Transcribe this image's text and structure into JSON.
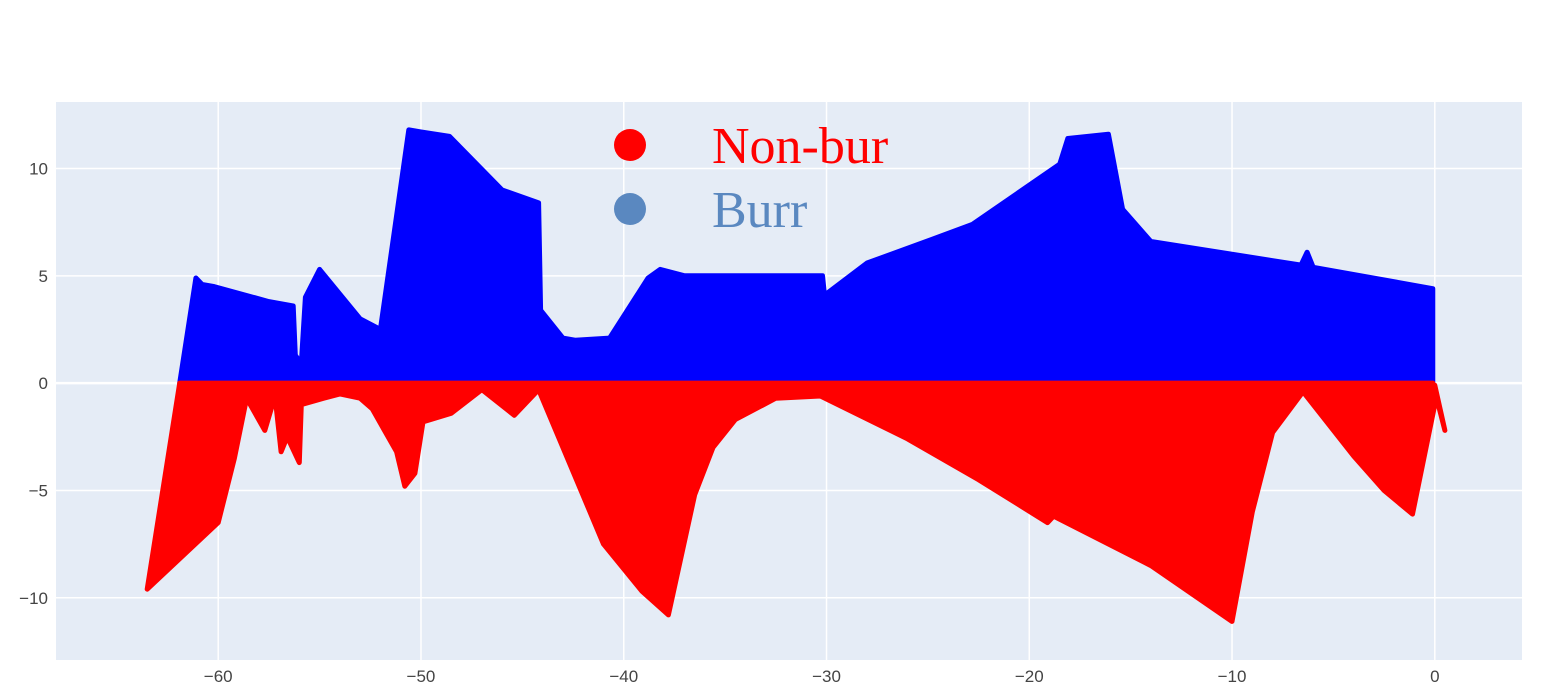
{
  "chart_data": {
    "type": "area",
    "title": "",
    "xlabel": "",
    "ylabel": "",
    "xlim": [
      -68,
      4.3
    ],
    "ylim": [
      -12.9,
      13.1
    ],
    "x_ticks": [
      -60,
      -50,
      -40,
      -30,
      -20,
      -10,
      0
    ],
    "y_ticks": [
      -10,
      -5,
      0,
      5,
      10
    ],
    "x_tick_labels": [
      "−60",
      "−50",
      "−40",
      "−30",
      "−20",
      "−10",
      "0"
    ],
    "y_tick_labels": [
      "−10",
      "−5",
      "0",
      "5",
      "10"
    ],
    "grid": true,
    "legend_position": "top-center",
    "plot_bg": "#e5ecf6",
    "series": [
      {
        "name": "Burr",
        "legend_color": "#5a88c0",
        "fill_color": "#0000ff",
        "x": [
          -61.9,
          -61.1,
          -60.8,
          -60.2,
          -57.5,
          -56.3,
          -56.2,
          -55.9,
          -55.7,
          -55.0,
          -53.0,
          -52.0,
          -50.6,
          -50.0,
          -48.6,
          -46.0,
          -44.2,
          -44.1,
          -43.0,
          -42.4,
          -40.7,
          -38.8,
          -38.2,
          -37.0,
          -30.2,
          -30.1,
          -28.0,
          -24.8,
          -22.8,
          -18.5,
          -18.1,
          -16.1,
          -15.4,
          -14.0,
          -6.6,
          -6.3,
          -6.0,
          -0.1,
          -0.1
        ],
        "values": [
          0,
          4.9,
          4.6,
          4.5,
          3.8,
          3.6,
          1.3,
          0.9,
          4.0,
          5.3,
          3.0,
          2.5,
          11.8,
          11.7,
          11.5,
          9.0,
          8.4,
          3.4,
          2.1,
          2.0,
          2.1,
          4.9,
          5.3,
          5.0,
          5.0,
          4.1,
          5.6,
          6.7,
          7.4,
          10.2,
          11.4,
          11.6,
          8.1,
          6.6,
          5.5,
          6.1,
          5.4,
          4.4,
          0
        ]
      },
      {
        "name": "Non-bur",
        "legend_color": "#ff0000",
        "fill_color": "#ff0000",
        "x": [
          -61.9,
          -63.5,
          -60.0,
          -59.2,
          -58.6,
          -57.7,
          -57.2,
          -56.9,
          -56.6,
          -56.0,
          -55.9,
          -54.8,
          -54.0,
          -53.0,
          -52.4,
          -51.2,
          -50.8,
          -50.3,
          -49.9,
          -48.5,
          -47.0,
          -45.4,
          -44.2,
          -41.0,
          -39.1,
          -37.8,
          -36.5,
          -35.6,
          -34.5,
          -32.5,
          -30.3,
          -26.0,
          -22.5,
          -19.1,
          -18.8,
          -14.0,
          -10.0,
          -9.0,
          -8.0,
          -6.5,
          -4.0,
          -2.5,
          -1.1,
          0.0,
          0.0,
          0.5,
          -0.1
        ],
        "values": [
          0,
          -9.6,
          -6.5,
          -3.5,
          -0.7,
          -2.2,
          -0.6,
          -3.2,
          -2.5,
          -3.7,
          -1.0,
          -0.7,
          -0.5,
          -0.7,
          -1.2,
          -3.2,
          -4.8,
          -4.2,
          -1.8,
          -1.4,
          -0.3,
          -1.5,
          -0.3,
          -7.5,
          -9.7,
          -10.8,
          -5.2,
          -3.0,
          -1.7,
          -0.7,
          -0.6,
          -2.6,
          -4.5,
          -6.5,
          -6.2,
          -8.5,
          -11.1,
          -6.0,
          -2.3,
          -0.4,
          -3.4,
          -5.0,
          -6.1,
          -1.0,
          -0.1,
          -2.2,
          0
        ]
      }
    ]
  }
}
